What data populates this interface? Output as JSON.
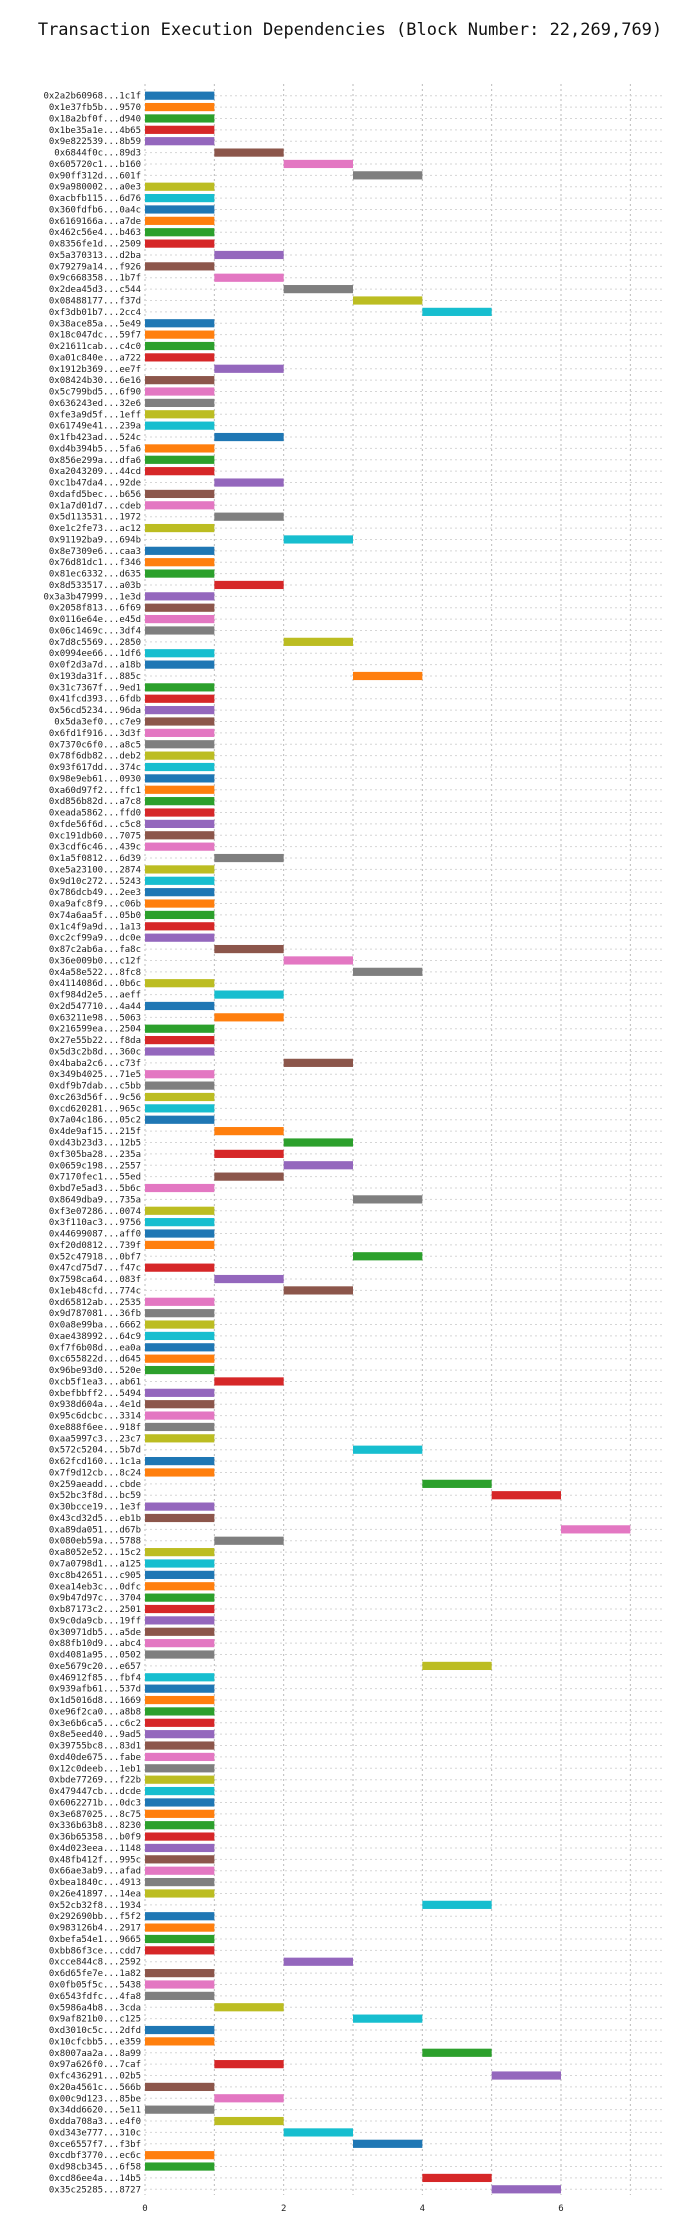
{
  "chart_data": {
    "type": "bar",
    "orientation": "horizontal-gantt",
    "title": "Transaction Execution Dependencies (Block Number: 22,269,769)",
    "xlabel": "",
    "ylabel": "",
    "xlim": [
      0,
      7.5
    ],
    "xticks": [
      0,
      2,
      4,
      6
    ],
    "grid": true,
    "legend": "none",
    "colors": [
      "#1f77b4",
      "#ff7f0e",
      "#2ca02c",
      "#d62728",
      "#9467bd",
      "#8c564b",
      "#e377c2",
      "#7f7f7f",
      "#bcbd22",
      "#17becf"
    ],
    "categories": [
      "0x2a2b60968...1c1f",
      "0x1e37fb5b...9570",
      "0x18a2bf0f...d940",
      "0x1be35a1e...4b65",
      "0x9e822539...8b59",
      "0x6844f0c...89d3",
      "0x605720c1...b160",
      "0x90ff312d...601f",
      "0x9a980002...a0e3",
      "0xacbfb115...6d76",
      "0x360fdfb6...0a4c",
      "0x6169166a...a7de",
      "0x462c56e4...b463",
      "0x8356fe1d...2509",
      "0x5a370313...d2ba",
      "0x79279a14...f926",
      "0x9c668358...1b7f",
      "0x2dea45d3...c544",
      "0x08488177...f37d",
      "0xf3db01b7...2cc4",
      "0x38ace85a...5e49",
      "0x18c047dc...59f7",
      "0x21611cab...c4c0",
      "0xa01c840e...a722",
      "0x1912b369...ee7f",
      "0x08424b30...6e16",
      "0x5c799bd5...6f90",
      "0x636243ed...32e6",
      "0xfe3a9d5f...1eff",
      "0x61749e41...239a",
      "0x1fb423ad...524c",
      "0xd4b394b5...5fa6",
      "0x856e299a...dfa6",
      "0xa2043209...44cd",
      "0xc1b47da4...92de",
      "0xdafd5bec...b656",
      "0x1a7d01d7...cdeb",
      "0x5d113531...1972",
      "0xe1c2fe73...ac12",
      "0x91192ba9...694b",
      "0x8e7309e6...caa3",
      "0x76d81dc1...f346",
      "0x81ec6332...d635",
      "0x8d533517...a03b",
      "0x3a3b47999...1e3d",
      "0x2058f813...6f69",
      "0x0116e64e...e45d",
      "0x06c1469c...3df4",
      "0x7d8c5569...2850",
      "0x0994ee66...1df6",
      "0x0f2d3a7d...a18b",
      "0x193da31f...885c",
      "0x31c7367f...9ed1",
      "0x41fcd393...6fdb",
      "0x56cd5234...96da",
      "0x5da3ef0...c7e9",
      "0x6fd1f916...3d3f",
      "0x7370c6f0...a8c5",
      "0x78f6db82...deb2",
      "0x93f617dd...374c",
      "0x98e9eb61...0930",
      "0xa60d97f2...ffc1",
      "0xd856b82d...a7c8",
      "0xeada5862...ffd0",
      "0xfde56f6d...c5c8",
      "0xc191db60...7075",
      "0x3cdf6c46...439c",
      "0x1a5f0812...6d39",
      "0xe5a23100...2874",
      "0x9d10c272...5243",
      "0x786dcb49...2ee3",
      "0xa9afc8f9...c06b",
      "0x74a6aa5f...05b0",
      "0x1c4f9a9d...1a13",
      "0xc2cf99a9...dc0e",
      "0x87c2ab6a...fa8c",
      "0x36e009b0...c12f",
      "0x4a58e522...8fc8",
      "0x4114086d...0b6c",
      "0xf984d2e5...aeff",
      "0x2d547710...4a44",
      "0x63211e98...5063",
      "0x216599ea...2504",
      "0x27e55b22...f8da",
      "0x5d3c2b8d...360c",
      "0x4baba2c6...c73f",
      "0x349b4025...71e5",
      "0xdf9b7dab...c5bb",
      "0xc263d56f...9c56",
      "0xcd620281...965c",
      "0x7a04c186...05c2",
      "0x4de9af15...215f",
      "0xd43b23d3...12b5",
      "0xf305ba28...235a",
      "0x0659c198...2557",
      "0x7170fec1...55ed",
      "0xbd7e5ad3...5b6c",
      "0x8649dba9...735a",
      "0xf3e07286...0074",
      "0x3f110ac3...9756",
      "0x44699087...aff0",
      "0xf20d0812...739f",
      "0x52c47918...0bf7",
      "0x47cd75d7...f47c",
      "0x7598ca64...083f",
      "0x1eb48cfd...774c",
      "0xd65812ab...2535",
      "0x9d787081...36fb",
      "0x0a8e99ba...6662",
      "0xae438992...64c9",
      "0xf7f6b08d...ea0a",
      "0xc655822d...d645",
      "0x96be93d0...520e",
      "0xcb5f1ea3...ab61",
      "0xbefbbff2...5494",
      "0x938d604a...4e1d",
      "0x95c6dcbc...3314",
      "0xe888f6ee...918f",
      "0xaa5997c3...23c7",
      "0x572c5204...5b7d",
      "0x62fcd160...1c1a",
      "0x7f9d12cb...8c24",
      "0x259aeadd...cbde",
      "0x52bc3f8d...bc59",
      "0x30bcce19...1e3f",
      "0x43cd32d5...eb1b",
      "0xa89da051...d67b",
      "0x080eb59a...5788",
      "0xa8052e52...15c2",
      "0x7a0798d1...a125",
      "0xc8b42651...c905",
      "0xea14eb3c...0dfc",
      "0x9b47d97c...3704",
      "0xb87173c2...2501",
      "0x9c0da9cb...19ff",
      "0x30971db5...a5de",
      "0x88fb10d9...abc4",
      "0xd4081a95...0502",
      "0xe5679c20...e657",
      "0x46912f85...fbf4",
      "0x939afb61...537d",
      "0x1d5016d8...1669",
      "0xe96f2ca0...a8b8",
      "0x3e6b6ca5...c6c2",
      "0x8e5eed40...9ad5",
      "0x39755bc8...83d1",
      "0xd40de675...fabe",
      "0x12c0deeb...1eb1",
      "0xbde77269...f22b",
      "0x479447cb...dcde",
      "0x6062271b...0dc3",
      "0x3e687025...8c75",
      "0x336b63b8...8230",
      "0x36b65358...b0f9",
      "0x4d023eea...1148",
      "0x48fb412f...995c",
      "0x66ae3ab9...afad",
      "0xbea1840c...4913",
      "0x26e41897...14ea",
      "0x52cb32f8...1934",
      "0x292690bb...f5f2",
      "0x983126b4...2917",
      "0xbefa54e1...9665",
      "0xbb86f3ce...cdd7",
      "0xcce844c8...2592",
      "0x6d65fe7e...1a82",
      "0x0fb05f5c...5438",
      "0x6543fdfc...4fa8",
      "0x5986a4b8...3cda",
      "0x9af821b0...c125",
      "0xd3010c5c...2dfd",
      "0x10cfcbb5...e359",
      "0x8007aa2a...8a99",
      "0x97a626f0...7caf",
      "0xfc436291...02b5",
      "0x20a4561c...566b",
      "0x00c9d123...85be",
      "0x34dd6620...5e11",
      "0xdda708a3...e4f0",
      "0xd343e777...310c",
      "0xce6557f7...f3bf",
      "0xcdbf3770...ec6c",
      "0xd98cb345...6f58",
      "0xcd86ee4a...14b5",
      "0x35c25285...8727"
    ],
    "series": [
      {
        "start": [
          0,
          0,
          0,
          0,
          0,
          1,
          2,
          3,
          0,
          0,
          0,
          0,
          0,
          0,
          1,
          0,
          1,
          2,
          3,
          4,
          0,
          0,
          0,
          0,
          1,
          0,
          0,
          0,
          0,
          0,
          1,
          0,
          0,
          0,
          1,
          0,
          0,
          1,
          0,
          2,
          0,
          0,
          0,
          1,
          0,
          0,
          0,
          0,
          2,
          0,
          0,
          3,
          0,
          0,
          0,
          0,
          0,
          0,
          0,
          0,
          0,
          0,
          0,
          0,
          0,
          0,
          0,
          1,
          0,
          0,
          0,
          0,
          0,
          0,
          0,
          1,
          2,
          3,
          0,
          1,
          0,
          1,
          0,
          0,
          0,
          2,
          0,
          0,
          0,
          0,
          0,
          1,
          2,
          1,
          2,
          1,
          0,
          3,
          0,
          0,
          0,
          0,
          3,
          0,
          1,
          2,
          0,
          0,
          0,
          0,
          0,
          0,
          0,
          1,
          0,
          0,
          0,
          0,
          0,
          3,
          0,
          0,
          4,
          5,
          0,
          0,
          6,
          1,
          0,
          0,
          0,
          0,
          0,
          0,
          0,
          0,
          0,
          0,
          4,
          0,
          0,
          0,
          0,
          0,
          0,
          0,
          0,
          0,
          0,
          0,
          0,
          0,
          0,
          0,
          0,
          0,
          0,
          0,
          0,
          4,
          0,
          0,
          0,
          0,
          2,
          0,
          0,
          0,
          1,
          3,
          0,
          0,
          4,
          1,
          5,
          0,
          1,
          0,
          1,
          2,
          3,
          0,
          0,
          4,
          5
        ],
        "end": [
          1,
          1,
          1,
          1,
          1,
          2,
          3,
          4,
          1,
          1,
          1,
          1,
          1,
          1,
          2,
          1,
          2,
          3,
          4,
          5,
          1,
          1,
          1,
          1,
          2,
          1,
          1,
          1,
          1,
          1,
          2,
          1,
          1,
          1,
          2,
          1,
          1,
          2,
          1,
          3,
          1,
          1,
          1,
          2,
          1,
          1,
          1,
          1,
          3,
          1,
          1,
          4,
          1,
          1,
          1,
          1,
          1,
          1,
          1,
          1,
          1,
          1,
          1,
          1,
          1,
          1,
          1,
          2,
          1,
          1,
          1,
          1,
          1,
          1,
          1,
          2,
          3,
          4,
          1,
          2,
          1,
          2,
          1,
          1,
          1,
          3,
          1,
          1,
          1,
          1,
          1,
          2,
          3,
          2,
          3,
          2,
          1,
          4,
          1,
          1,
          1,
          1,
          4,
          1,
          2,
          3,
          1,
          1,
          1,
          1,
          1,
          1,
          1,
          2,
          1,
          1,
          1,
          1,
          1,
          4,
          1,
          1,
          5,
          6,
          1,
          1,
          7,
          2,
          1,
          1,
          1,
          1,
          1,
          1,
          1,
          1,
          1,
          1,
          5,
          1,
          1,
          1,
          1,
          1,
          1,
          1,
          1,
          1,
          1,
          1,
          1,
          1,
          1,
          1,
          1,
          1,
          1,
          1,
          1,
          5,
          1,
          1,
          1,
          1,
          3,
          1,
          1,
          1,
          2,
          4,
          1,
          1,
          5,
          2,
          6,
          1,
          2,
          1,
          2,
          3,
          4,
          1,
          1,
          5,
          6
        ]
      }
    ]
  }
}
